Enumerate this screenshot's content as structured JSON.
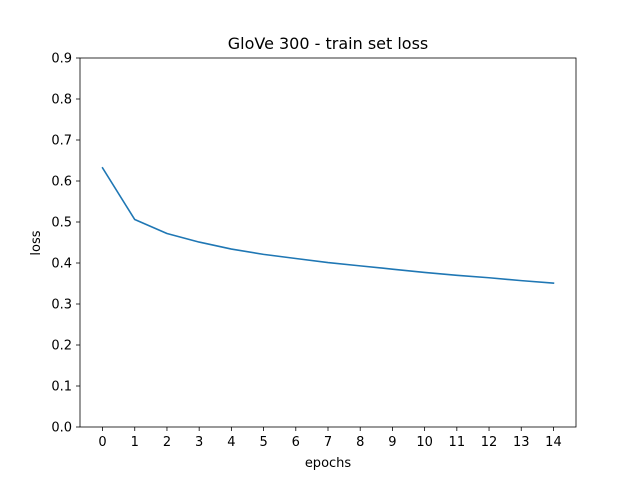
{
  "chart_data": {
    "type": "line",
    "title": "GloVe 300 - train set loss",
    "xlabel": "epochs",
    "ylabel": "loss",
    "xlim": [
      -0.7,
      14.7
    ],
    "ylim": [
      0,
      0.9
    ],
    "x_ticks": [
      "0",
      "1",
      "2",
      "3",
      "4",
      "5",
      "6",
      "7",
      "8",
      "9",
      "10",
      "11",
      "12",
      "13",
      "14"
    ],
    "y_ticks": [
      "0.0",
      "0.1",
      "0.2",
      "0.3",
      "0.4",
      "0.5",
      "0.6",
      "0.7",
      "0.8",
      "0.9"
    ],
    "grid": false,
    "series": [
      {
        "color": "#1f77b4",
        "x": [
          0,
          1,
          2,
          3,
          4,
          5,
          6,
          7,
          8,
          9,
          10,
          11,
          12,
          13,
          14
        ],
        "y": [
          0.632,
          0.506,
          0.472,
          0.451,
          0.434,
          0.421,
          0.411,
          0.401,
          0.393,
          0.385,
          0.377,
          0.37,
          0.364,
          0.357,
          0.351
        ]
      }
    ]
  }
}
